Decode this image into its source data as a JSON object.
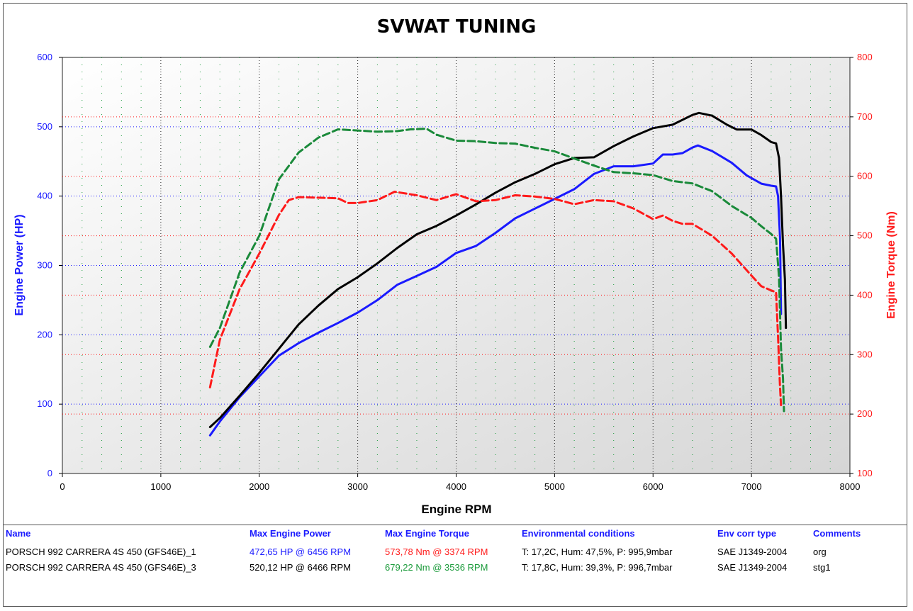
{
  "chart_data": {
    "type": "line",
    "title": "SVWAT TUNING",
    "xlabel": "Engine RPM",
    "ylabel_left": "Engine Power (HP)",
    "ylabel_right": "Engine Torque (Nm)",
    "xlim": [
      0,
      8000
    ],
    "ylim_left": [
      0,
      600
    ],
    "ylim_right": [
      100,
      800
    ],
    "x_ticks": [
      0,
      1000,
      2000,
      3000,
      4000,
      5000,
      6000,
      7000,
      8000
    ],
    "y_left_ticks": [
      0,
      100,
      200,
      300,
      400,
      500,
      600
    ],
    "y_right_ticks": [
      100,
      200,
      300,
      400,
      500,
      600,
      700,
      800
    ],
    "grid": true,
    "series": [
      {
        "axis": "left",
        "color": "#1a1aff",
        "style": "solid",
        "points": [
          [
            1500,
            55
          ],
          [
            1600,
            75
          ],
          [
            1800,
            110
          ],
          [
            2000,
            140
          ],
          [
            2200,
            170
          ],
          [
            2400,
            188
          ],
          [
            2600,
            203
          ],
          [
            2800,
            217
          ],
          [
            3000,
            232
          ],
          [
            3200,
            250
          ],
          [
            3400,
            272
          ],
          [
            3600,
            285
          ],
          [
            3800,
            298
          ],
          [
            4000,
            318
          ],
          [
            4200,
            328
          ],
          [
            4400,
            347
          ],
          [
            4600,
            368
          ],
          [
            4800,
            382
          ],
          [
            5000,
            396
          ],
          [
            5200,
            410
          ],
          [
            5400,
            432
          ],
          [
            5600,
            443
          ],
          [
            5800,
            443
          ],
          [
            6000,
            447
          ],
          [
            6100,
            460
          ],
          [
            6200,
            460
          ],
          [
            6300,
            462
          ],
          [
            6400,
            470
          ],
          [
            6456,
            473
          ],
          [
            6600,
            465
          ],
          [
            6800,
            448
          ],
          [
            6950,
            430
          ],
          [
            7100,
            418
          ],
          [
            7200,
            415
          ],
          [
            7250,
            414
          ],
          [
            7270,
            400
          ],
          [
            7290,
            340
          ],
          [
            7300,
            230
          ]
        ]
      },
      {
        "axis": "left",
        "color": "#000000",
        "style": "solid",
        "points": [
          [
            1500,
            67
          ],
          [
            1600,
            80
          ],
          [
            1800,
            112
          ],
          [
            2000,
            145
          ],
          [
            2200,
            180
          ],
          [
            2400,
            215
          ],
          [
            2600,
            242
          ],
          [
            2800,
            266
          ],
          [
            3000,
            283
          ],
          [
            3200,
            303
          ],
          [
            3400,
            325
          ],
          [
            3600,
            345
          ],
          [
            3800,
            357
          ],
          [
            4000,
            372
          ],
          [
            4200,
            388
          ],
          [
            4400,
            405
          ],
          [
            4600,
            420
          ],
          [
            4800,
            432
          ],
          [
            5000,
            446
          ],
          [
            5200,
            455
          ],
          [
            5400,
            456
          ],
          [
            5600,
            472
          ],
          [
            5800,
            486
          ],
          [
            6000,
            498
          ],
          [
            6200,
            503
          ],
          [
            6400,
            517
          ],
          [
            6466,
            520
          ],
          [
            6600,
            516
          ],
          [
            6750,
            503
          ],
          [
            6850,
            496
          ],
          [
            7000,
            496
          ],
          [
            7100,
            488
          ],
          [
            7200,
            478
          ],
          [
            7250,
            476
          ],
          [
            7280,
            455
          ],
          [
            7300,
            400
          ],
          [
            7320,
            330
          ],
          [
            7340,
            280
          ],
          [
            7350,
            210
          ]
        ]
      },
      {
        "axis": "right",
        "color": "#ff1a1a",
        "style": "dashed",
        "points": [
          [
            1500,
            245
          ],
          [
            1600,
            325
          ],
          [
            1800,
            410
          ],
          [
            2000,
            470
          ],
          [
            2200,
            535
          ],
          [
            2300,
            560
          ],
          [
            2400,
            565
          ],
          [
            2600,
            564
          ],
          [
            2800,
            563
          ],
          [
            2900,
            555
          ],
          [
            3000,
            555
          ],
          [
            3200,
            560
          ],
          [
            3374,
            574
          ],
          [
            3600,
            568
          ],
          [
            3800,
            560
          ],
          [
            4000,
            570
          ],
          [
            4200,
            558
          ],
          [
            4400,
            560
          ],
          [
            4600,
            568
          ],
          [
            4800,
            566
          ],
          [
            5000,
            562
          ],
          [
            5200,
            553
          ],
          [
            5400,
            560
          ],
          [
            5600,
            558
          ],
          [
            5800,
            546
          ],
          [
            6000,
            528
          ],
          [
            6100,
            534
          ],
          [
            6200,
            525
          ],
          [
            6300,
            520
          ],
          [
            6400,
            520
          ],
          [
            6600,
            500
          ],
          [
            6800,
            470
          ],
          [
            7000,
            433
          ],
          [
            7100,
            415
          ],
          [
            7200,
            408
          ],
          [
            7250,
            405
          ],
          [
            7270,
            330
          ],
          [
            7290,
            245
          ],
          [
            7300,
            215
          ]
        ]
      },
      {
        "axis": "right",
        "color": "#1a8a3a",
        "style": "dashed",
        "points": [
          [
            1500,
            313
          ],
          [
            1600,
            345
          ],
          [
            1800,
            438
          ],
          [
            2000,
            500
          ],
          [
            2200,
            595
          ],
          [
            2400,
            640
          ],
          [
            2600,
            665
          ],
          [
            2800,
            679
          ],
          [
            3000,
            677
          ],
          [
            3200,
            675
          ],
          [
            3400,
            676
          ],
          [
            3536,
            679
          ],
          [
            3700,
            680
          ],
          [
            3800,
            670
          ],
          [
            4000,
            660
          ],
          [
            4200,
            659
          ],
          [
            4400,
            656
          ],
          [
            4600,
            655
          ],
          [
            4800,
            648
          ],
          [
            5000,
            642
          ],
          [
            5200,
            630
          ],
          [
            5400,
            618
          ],
          [
            5600,
            607
          ],
          [
            5800,
            605
          ],
          [
            6000,
            602
          ],
          [
            6200,
            592
          ],
          [
            6400,
            588
          ],
          [
            6600,
            575
          ],
          [
            6800,
            550
          ],
          [
            7000,
            530
          ],
          [
            7100,
            516
          ],
          [
            7200,
            503
          ],
          [
            7250,
            495
          ],
          [
            7280,
            430
          ],
          [
            7300,
            310
          ],
          [
            7320,
            260
          ],
          [
            7330,
            205
          ]
        ]
      }
    ]
  },
  "legend": {
    "headers": {
      "name": "Name",
      "power": "Max Engine Power",
      "torque": "Max Engine Torque",
      "env": "Environmental conditions",
      "corr": "Env corr type",
      "comments": "Comments"
    },
    "rows": [
      {
        "name": "PORSCH 992 CARRERA 4S 450 (GFS46E)_1",
        "power": "472,65 HP @ 6456 RPM",
        "torque": "573,78 Nm @ 3374 RPM",
        "env": "T: 17,2C, Hum: 47,5%, P: 995,9mbar",
        "corr": "SAE J1349-2004",
        "comments": "org"
      },
      {
        "name": "PORSCH 992 CARRERA 4S 450 (GFS46E)_3",
        "power": "520,12 HP @ 6466 RPM",
        "torque": "679,22 Nm @ 3536 RPM",
        "env": "T: 17,8C, Hum: 39,3%, P: 996,7mbar",
        "corr": "SAE J1349-2004",
        "comments": "stg1"
      }
    ]
  }
}
